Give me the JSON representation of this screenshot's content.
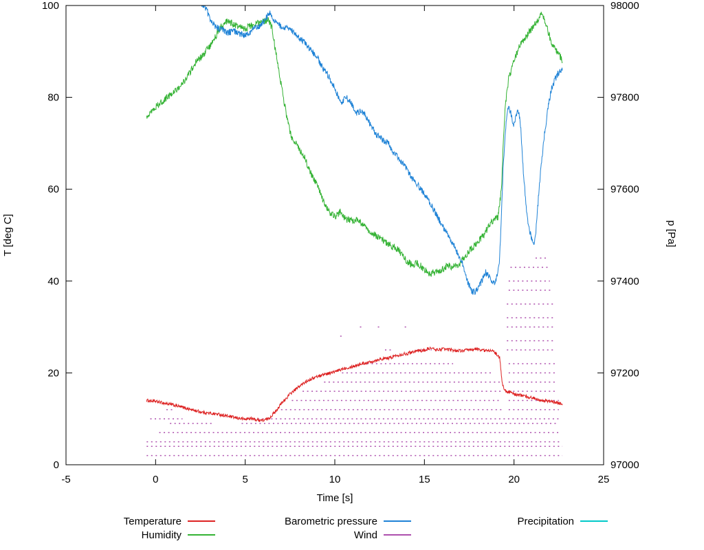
{
  "chart_data": {
    "type": "line",
    "title": "",
    "xlabel": "Time [s]",
    "ylabel_left": "T [deg C]",
    "ylabel_right": "p [Pa]",
    "xlim": [
      -5,
      25
    ],
    "ylim_left": [
      0,
      100
    ],
    "ylim_right": [
      97000,
      98000
    ],
    "xticks": [
      -5,
      0,
      5,
      10,
      15,
      20,
      25
    ],
    "yticks_left": [
      0,
      20,
      40,
      60,
      80,
      100
    ],
    "yticks_right": [
      97000,
      97200,
      97400,
      97600,
      97800,
      98000
    ],
    "grid": false,
    "legend_position": "bottom",
    "axis_color": "#000000",
    "background": "#ffffff",
    "series": [
      {
        "name": "Temperature",
        "axis": "left",
        "color": "#dd2222",
        "noise": 0.35,
        "points": [
          [
            -0.5,
            14
          ],
          [
            0,
            13.8
          ],
          [
            0.5,
            13.4
          ],
          [
            1,
            13
          ],
          [
            1.5,
            12.5
          ],
          [
            2,
            12
          ],
          [
            2.5,
            11.5
          ],
          [
            3,
            11.2
          ],
          [
            3.5,
            11
          ],
          [
            4,
            10.6
          ],
          [
            4.5,
            10.2
          ],
          [
            5,
            9.9
          ],
          [
            5.3,
            10.1
          ],
          [
            5.6,
            9.8
          ],
          [
            6,
            9.7
          ],
          [
            6.3,
            10
          ],
          [
            6.6,
            11.2
          ],
          [
            7,
            13.2
          ],
          [
            7.5,
            15.4
          ],
          [
            8,
            17
          ],
          [
            8.5,
            18.4
          ],
          [
            9,
            19.2
          ],
          [
            9.5,
            19.8
          ],
          [
            10,
            20.2
          ],
          [
            10.5,
            21
          ],
          [
            11,
            21.4
          ],
          [
            11.5,
            22
          ],
          [
            12,
            22.4
          ],
          [
            12.5,
            23
          ],
          [
            13,
            23.2
          ],
          [
            13.5,
            23.9
          ],
          [
            14,
            24.2
          ],
          [
            14.5,
            24.8
          ],
          [
            15,
            24.9
          ],
          [
            15.3,
            25.4
          ],
          [
            15.7,
            25
          ],
          [
            16,
            25.2
          ],
          [
            16.5,
            25
          ],
          [
            17,
            24.8
          ],
          [
            17.5,
            25
          ],
          [
            18,
            25.2
          ],
          [
            18.4,
            24.8
          ],
          [
            18.7,
            25
          ],
          [
            19,
            24.2
          ],
          [
            19.2,
            23.2
          ],
          [
            19.35,
            17.5
          ],
          [
            19.5,
            16.2
          ],
          [
            20,
            15.4
          ],
          [
            20.5,
            15
          ],
          [
            21,
            14.6
          ],
          [
            21.5,
            14.1
          ],
          [
            22,
            13.8
          ],
          [
            22.4,
            13.5
          ],
          [
            22.7,
            13.3
          ]
        ]
      },
      {
        "name": "Humidity",
        "axis": "left",
        "color": "#33b233",
        "noise": 0.75,
        "points": [
          [
            -0.5,
            76
          ],
          [
            0,
            78
          ],
          [
            0.5,
            79.5
          ],
          [
            1,
            81
          ],
          [
            1.5,
            83
          ],
          [
            2,
            86
          ],
          [
            2.3,
            88
          ],
          [
            2.6,
            89
          ],
          [
            3,
            91
          ],
          [
            3.3,
            93
          ],
          [
            3.6,
            95
          ],
          [
            4,
            96.5
          ],
          [
            4.3,
            96
          ],
          [
            4.6,
            95.5
          ],
          [
            5,
            95
          ],
          [
            5.3,
            95.5
          ],
          [
            5.6,
            96
          ],
          [
            6,
            96.5
          ],
          [
            6.3,
            97
          ],
          [
            6.5,
            95
          ],
          [
            6.7,
            90
          ],
          [
            7,
            83
          ],
          [
            7.3,
            76
          ],
          [
            7.6,
            71
          ],
          [
            8,
            69
          ],
          [
            8.3,
            67
          ],
          [
            8.6,
            64
          ],
          [
            9,
            61
          ],
          [
            9.3,
            58
          ],
          [
            9.6,
            55.5
          ],
          [
            10,
            54
          ],
          [
            10.3,
            55
          ],
          [
            10.6,
            53.5
          ],
          [
            11,
            53
          ],
          [
            11.3,
            53.5
          ],
          [
            11.6,
            52
          ],
          [
            12,
            50.5
          ],
          [
            12.5,
            49.5
          ],
          [
            13,
            48
          ],
          [
            13.5,
            47
          ],
          [
            14,
            44.5
          ],
          [
            14.3,
            43.5
          ],
          [
            14.6,
            44
          ],
          [
            15,
            42.5
          ],
          [
            15.3,
            41.5
          ],
          [
            15.6,
            42
          ],
          [
            16,
            42.5
          ],
          [
            16.3,
            43.5
          ],
          [
            16.6,
            43
          ],
          [
            17,
            44
          ],
          [
            17.3,
            45.5
          ],
          [
            17.6,
            47
          ],
          [
            18,
            48.5
          ],
          [
            18.3,
            50
          ],
          [
            18.6,
            52
          ],
          [
            18.9,
            53.5
          ],
          [
            19.1,
            54
          ],
          [
            19.3,
            60
          ],
          [
            19.4,
            70
          ],
          [
            19.5,
            78
          ],
          [
            19.7,
            84
          ],
          [
            20,
            88
          ],
          [
            20.3,
            91
          ],
          [
            20.6,
            93
          ],
          [
            21,
            95
          ],
          [
            21.3,
            96.5
          ],
          [
            21.5,
            98
          ],
          [
            21.7,
            97
          ],
          [
            22,
            93
          ],
          [
            22.2,
            91
          ],
          [
            22.4,
            90
          ],
          [
            22.7,
            88
          ]
        ]
      },
      {
        "name": "Barometric pressure",
        "axis": "right",
        "color": "#1e82d6",
        "noise": 7,
        "points": [
          [
            2.45,
            98020
          ],
          [
            2.6,
            98000
          ],
          [
            2.8,
            97995
          ],
          [
            3,
            97975
          ],
          [
            3.2,
            97960
          ],
          [
            3.5,
            97950
          ],
          [
            3.8,
            97945
          ],
          [
            4,
            97940
          ],
          [
            4.3,
            97945
          ],
          [
            4.6,
            97940
          ],
          [
            5,
            97935
          ],
          [
            5.2,
            97940
          ],
          [
            5.5,
            97950
          ],
          [
            5.8,
            97955
          ],
          [
            6,
            97965
          ],
          [
            6.2,
            97975
          ],
          [
            6.4,
            97985
          ],
          [
            6.5,
            97975
          ],
          [
            6.7,
            97965
          ],
          [
            7,
            97955
          ],
          [
            7.3,
            97950
          ],
          [
            7.6,
            97945
          ],
          [
            8,
            97930
          ],
          [
            8.3,
            97920
          ],
          [
            8.6,
            97905
          ],
          [
            9,
            97890
          ],
          [
            9.3,
            97865
          ],
          [
            9.6,
            97850
          ],
          [
            10,
            97820
          ],
          [
            10.2,
            97800
          ],
          [
            10.4,
            97790
          ],
          [
            10.6,
            97800
          ],
          [
            10.8,
            97795
          ],
          [
            11,
            97780
          ],
          [
            11.2,
            97765
          ],
          [
            11.5,
            97770
          ],
          [
            11.8,
            97755
          ],
          [
            12,
            97740
          ],
          [
            12.3,
            97720
          ],
          [
            12.6,
            97710
          ],
          [
            13,
            97700
          ],
          [
            13.2,
            97680
          ],
          [
            13.5,
            97670
          ],
          [
            13.8,
            97655
          ],
          [
            14,
            97645
          ],
          [
            14.3,
            97625
          ],
          [
            14.6,
            97610
          ],
          [
            15,
            97590
          ],
          [
            15.3,
            97570
          ],
          [
            15.6,
            97550
          ],
          [
            16,
            97520
          ],
          [
            16.3,
            97500
          ],
          [
            16.6,
            97480
          ],
          [
            17,
            97450
          ],
          [
            17.2,
            97430
          ],
          [
            17.4,
            97400
          ],
          [
            17.6,
            97380
          ],
          [
            17.8,
            97375
          ],
          [
            18,
            97385
          ],
          [
            18.2,
            97400
          ],
          [
            18.4,
            97420
          ],
          [
            18.6,
            97410
          ],
          [
            18.8,
            97395
          ],
          [
            19,
            97400
          ],
          [
            19.1,
            97420
          ],
          [
            19.2,
            97450
          ],
          [
            19.3,
            97550
          ],
          [
            19.4,
            97650
          ],
          [
            19.5,
            97720
          ],
          [
            19.6,
            97760
          ],
          [
            19.7,
            97780
          ],
          [
            19.8,
            97770
          ],
          [
            19.9,
            97750
          ],
          [
            20,
            97740
          ],
          [
            20.1,
            97760
          ],
          [
            20.2,
            97770
          ],
          [
            20.3,
            97760
          ],
          [
            20.4,
            97720
          ],
          [
            20.5,
            97650
          ],
          [
            20.6,
            97600
          ],
          [
            20.7,
            97550
          ],
          [
            20.8,
            97520
          ],
          [
            21,
            97490
          ],
          [
            21.1,
            97480
          ],
          [
            21.2,
            97500
          ],
          [
            21.3,
            97550
          ],
          [
            21.4,
            97600
          ],
          [
            21.5,
            97650
          ],
          [
            21.7,
            97720
          ],
          [
            21.9,
            97780
          ],
          [
            22.1,
            97820
          ],
          [
            22.3,
            97840
          ],
          [
            22.5,
            97855
          ],
          [
            22.7,
            97860
          ]
        ]
      }
    ],
    "wind": {
      "name": "Wind",
      "axis": "left",
      "color": "#ad4fad",
      "segments": [
        [
          2,
          -0.5,
          22.7
        ],
        [
          4,
          -0.5,
          22.7
        ],
        [
          5,
          -0.5,
          22.6
        ],
        [
          7,
          0.2,
          22.6
        ],
        [
          9,
          0.8,
          3.2
        ],
        [
          9,
          4.8,
          22.5
        ],
        [
          10,
          -0.3,
          1.5
        ],
        [
          10,
          5.2,
          22.5
        ],
        [
          12,
          0.6,
          1.0
        ],
        [
          12,
          7.0,
          19.3
        ],
        [
          12,
          19.7,
          22.5
        ],
        [
          14,
          7.6,
          19.3
        ],
        [
          14,
          19.7,
          22.5
        ],
        [
          16,
          8.2,
          19.3
        ],
        [
          16,
          19.7,
          22.4
        ],
        [
          18,
          9.4,
          19.2
        ],
        [
          18,
          19.7,
          22.4
        ],
        [
          20,
          10.4,
          18.8
        ],
        [
          20,
          19.7,
          22.3
        ],
        [
          22,
          11.8,
          16.6
        ],
        [
          22,
          19.7,
          22.3
        ],
        [
          25,
          12.8,
          13.2
        ],
        [
          25,
          14.6,
          15.4
        ],
        [
          25,
          19.6,
          22.3
        ],
        [
          27,
          19.6,
          22.3
        ],
        [
          28,
          10.3,
          10.5
        ],
        [
          30,
          11.4,
          11.5
        ],
        [
          30,
          12.4,
          12.6
        ],
        [
          30,
          13.9,
          14.0
        ],
        [
          30,
          19.6,
          22.2
        ],
        [
          32,
          19.6,
          22.2
        ],
        [
          35,
          19.6,
          22.2
        ],
        [
          38,
          19.7,
          22.1
        ],
        [
          40,
          19.7,
          22.0
        ],
        [
          43,
          19.8,
          21.9
        ],
        [
          45,
          21.2,
          21.8
        ]
      ]
    },
    "precipitation": {
      "name": "Precipitation",
      "axis": "left",
      "color": "#00c8c8",
      "points": []
    },
    "legend": {
      "rows": [
        [
          {
            "label": "Temperature",
            "color": "#dd2222"
          },
          {
            "label": "Barometric pressure",
            "color": "#1e82d6"
          },
          {
            "label": "Precipitation",
            "color": "#00c8c8"
          }
        ],
        [
          {
            "label": "Humidity",
            "color": "#33b233"
          },
          {
            "label": "Wind",
            "color": "#ad4fad"
          },
          null
        ]
      ]
    }
  }
}
